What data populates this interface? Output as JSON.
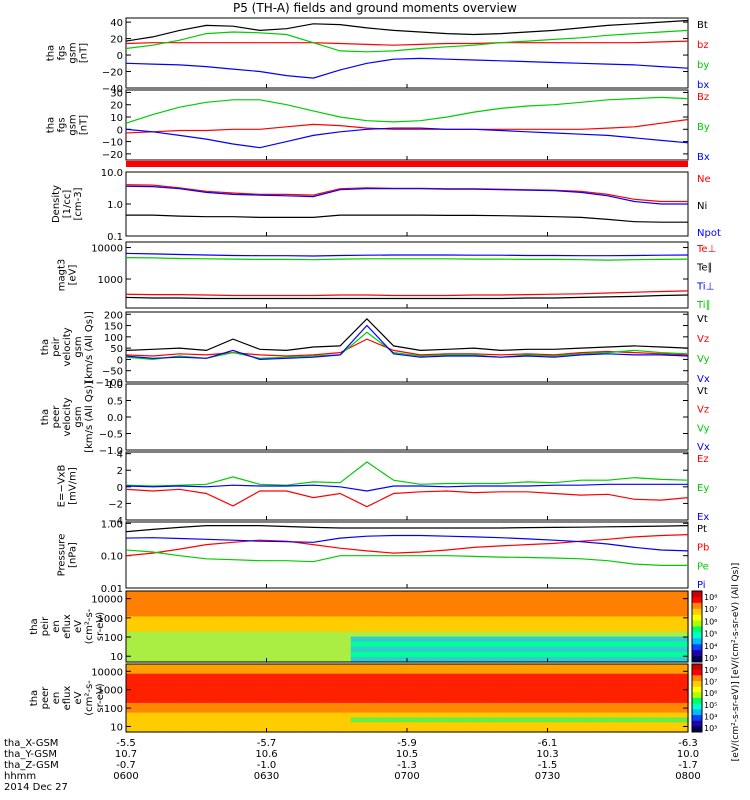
{
  "title": "P5 (TH-A) fields and ground moments overview",
  "date_label": "2014 Dec 27",
  "time_axis": {
    "row_labels": [
      "tha_X-GSM",
      "tha_Y-GSM",
      "tha_Z-GSM",
      "hhmm"
    ],
    "columns": [
      {
        "x": "-5.5",
        "y": "10.7",
        "z": "-0.7",
        "t": "0600"
      },
      {
        "x": "-5.7",
        "y": "10.6",
        "z": "-1.0",
        "t": "0630"
      },
      {
        "x": "-5.9",
        "y": "10.5",
        "z": "-1.3",
        "t": "0700"
      },
      {
        "x": "-6.1",
        "y": "10.3",
        "z": "-1.5",
        "t": "0730"
      },
      {
        "x": "-6.3",
        "y": "10.0",
        "z": "-1.7",
        "t": "0800"
      }
    ]
  },
  "colors": {
    "black": "#000000",
    "red": "#ff0000",
    "green": "#00cc00",
    "blue": "#0000ff"
  },
  "chart_data": [
    {
      "type": "line",
      "ylabel": [
        "tha",
        "fgs",
        "gsm",
        "[nT]"
      ],
      "ylim": [
        -40,
        45
      ],
      "yticks": [
        "40",
        "20",
        "0",
        "−20",
        "−40"
      ],
      "ytick_values": [
        40,
        20,
        0,
        -20,
        -40
      ],
      "series": [
        {
          "name": "Bt",
          "color": "#000000",
          "values": [
            17,
            22,
            30,
            36,
            35,
            30,
            32,
            38,
            37,
            33,
            30,
            28,
            26,
            25,
            26,
            28,
            30,
            33,
            36,
            38,
            40,
            42
          ]
        },
        {
          "name": "bz",
          "color": "#ff0000",
          "values": [
            14,
            15,
            15,
            15,
            15,
            15,
            15,
            15,
            14,
            13,
            12,
            13,
            14,
            14,
            15,
            15,
            15,
            15,
            15,
            15,
            16,
            17
          ]
        },
        {
          "name": "by",
          "color": "#00cc00",
          "values": [
            8,
            12,
            18,
            26,
            28,
            27,
            25,
            15,
            5,
            4,
            5,
            8,
            10,
            12,
            15,
            17,
            19,
            21,
            24,
            26,
            28,
            30
          ]
        },
        {
          "name": "bx",
          "color": "#0000ff",
          "values": [
            -10,
            -11,
            -12,
            -14,
            -17,
            -20,
            -25,
            -28,
            -18,
            -10,
            -5,
            -4,
            -5,
            -6,
            -7,
            -8,
            -9,
            -10,
            -11,
            -12,
            -14,
            -16
          ]
        }
      ]
    },
    {
      "type": "line",
      "ylabel": [
        "tha",
        "fgs",
        "gsm",
        "[nT]"
      ],
      "ylim": [
        -25,
        32
      ],
      "yticks": [
        "30",
        "20",
        "10",
        "0",
        "−10",
        "−20"
      ],
      "ytick_values": [
        30,
        20,
        10,
        0,
        -10,
        -20
      ],
      "series": [
        {
          "name": "Bz",
          "color": "#ff0000",
          "values": [
            -3,
            -2,
            -1,
            -1,
            0,
            0,
            2,
            4,
            3,
            1,
            0,
            0,
            0,
            0,
            0,
            0,
            0,
            0,
            1,
            2,
            5,
            8
          ]
        },
        {
          "name": "By",
          "color": "#00cc00",
          "values": [
            5,
            12,
            18,
            22,
            24,
            24,
            20,
            15,
            10,
            7,
            6,
            7,
            10,
            14,
            17,
            19,
            20,
            22,
            24,
            25,
            26,
            25
          ]
        },
        {
          "name": "Bx",
          "color": "#0000ff",
          "values": [
            0,
            -2,
            -5,
            -8,
            -12,
            -15,
            -10,
            -5,
            -2,
            0,
            1,
            1,
            0,
            0,
            -1,
            -2,
            -3,
            -4,
            -5,
            -7,
            -9,
            -11
          ]
        }
      ]
    },
    {
      "type": "line",
      "ylabel": [
        "Density",
        "[1/cc]",
        "[cm-3]"
      ],
      "log": true,
      "ylim": [
        0.1,
        10
      ],
      "yticks": [
        "10.0",
        "1.0",
        "0.1"
      ],
      "ytick_values": [
        10,
        1,
        0.1
      ],
      "series": [
        {
          "name": "Ne",
          "color": "#ff0000",
          "values": [
            4,
            3.9,
            3.2,
            2.5,
            2.2,
            2.0,
            2.0,
            1.9,
            3.0,
            3.2,
            3.1,
            3.1,
            3.0,
            3.0,
            2.9,
            2.8,
            2.7,
            2.5,
            2.0,
            1.4,
            1.2,
            1.2
          ]
        },
        {
          "name": "Ni",
          "color": "#000000",
          "values": [
            0.45,
            0.45,
            0.42,
            0.4,
            0.4,
            0.38,
            0.38,
            0.38,
            0.45,
            0.45,
            0.45,
            0.45,
            0.44,
            0.44,
            0.43,
            0.42,
            0.4,
            0.38,
            0.33,
            0.28,
            0.27,
            0.27
          ]
        },
        {
          "name": "Npot",
          "color": "#0000ff",
          "values": [
            3.6,
            3.5,
            3.0,
            2.3,
            2.0,
            1.9,
            1.8,
            1.7,
            2.8,
            3.0,
            3.0,
            3.0,
            2.9,
            2.9,
            2.8,
            2.7,
            2.6,
            2.3,
            1.8,
            1.2,
            1.0,
            1.0
          ]
        }
      ]
    },
    {
      "type": "line",
      "ylabel": [
        "magt3",
        "[eV]"
      ],
      "log": true,
      "ylim": [
        120,
        15000
      ],
      "yticks": [
        "10000",
        "1000"
      ],
      "ytick_values": [
        10000,
        1000
      ],
      "series": [
        {
          "name": "Te⊥",
          "color": "#ff0000",
          "values": [
            330,
            320,
            320,
            310,
            300,
            300,
            300,
            300,
            310,
            310,
            300,
            300,
            300,
            310,
            310,
            320,
            330,
            340,
            360,
            380,
            400,
            420
          ]
        },
        {
          "name": "Te∥",
          "color": "#000000",
          "values": [
            260,
            250,
            250,
            240,
            240,
            240,
            240,
            240,
            240,
            240,
            240,
            240,
            240,
            240,
            240,
            250,
            250,
            260,
            270,
            280,
            300,
            310
          ]
        },
        {
          "name": "Ti⊥",
          "color": "#0000ff",
          "values": [
            6500,
            6300,
            6000,
            5800,
            5600,
            5500,
            5500,
            5400,
            5600,
            5700,
            5800,
            5800,
            5800,
            5700,
            5700,
            5600,
            5600,
            5500,
            5500,
            5600,
            5700,
            5800
          ]
        },
        {
          "name": "Ti∥",
          "color": "#00cc00",
          "values": [
            4800,
            4700,
            4500,
            4400,
            4300,
            4200,
            4200,
            4100,
            4300,
            4400,
            4400,
            4400,
            4400,
            4300,
            4300,
            4200,
            4200,
            4100,
            4000,
            4100,
            4200,
            4300
          ]
        }
      ]
    },
    {
      "type": "line",
      "ylabel": [
        "tha",
        "peir",
        "velocity",
        "gsm",
        "[km/s (All Qs)]"
      ],
      "ylim": [
        -100,
        210
      ],
      "yticks": [
        "200",
        "150",
        "100",
        "50",
        "0",
        "−50",
        "−100"
      ],
      "ytick_values": [
        200,
        150,
        100,
        50,
        0,
        -50,
        -100
      ],
      "series": [
        {
          "name": "Vt",
          "color": "#000000",
          "values": [
            40,
            45,
            50,
            40,
            90,
            45,
            40,
            55,
            60,
            180,
            60,
            40,
            45,
            50,
            40,
            45,
            45,
            50,
            55,
            60,
            55,
            50
          ]
        },
        {
          "name": "Vz",
          "color": "#ff0000",
          "values": [
            20,
            15,
            25,
            20,
            30,
            20,
            15,
            20,
            30,
            90,
            40,
            20,
            25,
            25,
            20,
            25,
            20,
            30,
            35,
            30,
            25,
            20
          ]
        },
        {
          "name": "Vy",
          "color": "#00cc00",
          "values": [
            10,
            0,
            15,
            5,
            30,
            5,
            10,
            15,
            20,
            120,
            30,
            15,
            20,
            20,
            10,
            20,
            15,
            25,
            30,
            40,
            30,
            25
          ]
        },
        {
          "name": "Vx",
          "color": "#0000ff",
          "values": [
            15,
            5,
            10,
            5,
            40,
            0,
            5,
            10,
            20,
            150,
            25,
            10,
            15,
            15,
            10,
            15,
            10,
            20,
            25,
            20,
            20,
            15
          ]
        }
      ]
    },
    {
      "type": "line",
      "ylabel": [
        "tha",
        "peer",
        "velocity",
        "gsm",
        "[km/s (All Qs)]"
      ],
      "ylim": [
        -1,
        1
      ],
      "yticks": [
        "1.0",
        "0.5",
        "0.0",
        "−0.5",
        "−1.0"
      ],
      "ytick_values": [
        1,
        0.5,
        0,
        -0.5,
        -1
      ],
      "series": [
        {
          "name": "Vt",
          "color": "#000000",
          "values": []
        },
        {
          "name": "Vz",
          "color": "#ff0000",
          "values": []
        },
        {
          "name": "Vy",
          "color": "#00cc00",
          "values": []
        },
        {
          "name": "Vx",
          "color": "#0000ff",
          "values": []
        }
      ]
    },
    {
      "type": "line",
      "ylabel": [
        "E=−VxB",
        "[mV/m]"
      ],
      "ylim": [
        -4,
        4.2
      ],
      "yticks": [
        "4",
        "2",
        "0",
        "−2",
        "−4"
      ],
      "ytick_values": [
        4,
        2,
        0,
        -2,
        -4
      ],
      "series": [
        {
          "name": "Ez",
          "color": "#ff0000",
          "values": [
            -0.3,
            -0.5,
            -0.3,
            -0.8,
            -2.3,
            -0.5,
            -0.5,
            -1.3,
            -0.8,
            -2.4,
            -0.8,
            -0.6,
            -0.5,
            -0.7,
            -0.6,
            -0.6,
            -0.8,
            -1.0,
            -0.9,
            -1.5,
            -1.6,
            -1.3
          ]
        },
        {
          "name": "Ey",
          "color": "#00cc00",
          "values": [
            0.2,
            0.1,
            0.2,
            0.3,
            1.2,
            0.3,
            0.2,
            0.6,
            0.5,
            3.0,
            0.8,
            0.3,
            0.4,
            0.4,
            0.4,
            0.6,
            0.5,
            0.8,
            0.8,
            1.1,
            0.9,
            0.8
          ]
        },
        {
          "name": "Ex",
          "color": "#0000ff",
          "values": [
            0.1,
            0.0,
            0.1,
            0.0,
            0.2,
            0.1,
            0.1,
            0.2,
            0.0,
            -0.5,
            0.1,
            0.1,
            0.0,
            0.1,
            0.1,
            0.1,
            0.2,
            0.2,
            0.3,
            0.3,
            0.3,
            0.3
          ]
        }
      ]
    },
    {
      "type": "line",
      "ylabel": [
        "Pressure",
        "[nPa]"
      ],
      "log": true,
      "ylim": [
        0.01,
        1.1
      ],
      "yticks": [
        "1.00",
        "0.10",
        "0.01"
      ],
      "ytick_values": [
        1,
        0.1,
        0.01
      ],
      "series": [
        {
          "name": "Pt",
          "color": "#000000",
          "values": [
            0.55,
            0.65,
            0.75,
            0.85,
            0.85,
            0.85,
            0.8,
            0.75,
            0.72,
            0.72,
            0.72,
            0.72,
            0.72,
            0.72,
            0.72,
            0.74,
            0.75,
            0.76,
            0.78,
            0.8,
            0.82,
            0.85
          ]
        },
        {
          "name": "Pb",
          "color": "#ff0000",
          "values": [
            0.1,
            0.12,
            0.16,
            0.22,
            0.26,
            0.3,
            0.28,
            0.22,
            0.17,
            0.14,
            0.12,
            0.13,
            0.15,
            0.18,
            0.2,
            0.22,
            0.24,
            0.28,
            0.32,
            0.38,
            0.42,
            0.45
          ]
        },
        {
          "name": "Pe",
          "color": "#00cc00",
          "values": [
            0.15,
            0.13,
            0.1,
            0.08,
            0.075,
            0.07,
            0.07,
            0.065,
            0.1,
            0.1,
            0.1,
            0.1,
            0.1,
            0.095,
            0.09,
            0.088,
            0.085,
            0.08,
            0.07,
            0.055,
            0.05,
            0.05
          ]
        },
        {
          "name": "Pi",
          "color": "#0000ff",
          "values": [
            0.35,
            0.36,
            0.34,
            0.32,
            0.3,
            0.28,
            0.27,
            0.26,
            0.35,
            0.4,
            0.42,
            0.42,
            0.4,
            0.38,
            0.36,
            0.33,
            0.3,
            0.27,
            0.23,
            0.18,
            0.15,
            0.14
          ]
        }
      ]
    },
    {
      "type": "heatmap",
      "ylabel": [
        "tha",
        "peir",
        "en",
        "eflux",
        "eV",
        "(cm²-s-",
        "sr-eV)"
      ],
      "log": true,
      "ylim": [
        5,
        25000
      ],
      "yticks": [
        "10000",
        "1000",
        "100",
        "10"
      ],
      "ytick_values": [
        10000,
        1000,
        100,
        10
      ]
    },
    {
      "type": "heatmap",
      "ylabel": [
        "tha",
        "peer",
        "en",
        "eflux",
        "eV",
        "(cm²-s-",
        "sr-eV)"
      ],
      "log": true,
      "ylim": [
        5,
        25000
      ],
      "yticks": [
        "10000",
        "1000",
        "100",
        "10"
      ],
      "ytick_values": [
        10000,
        1000,
        100,
        10
      ]
    }
  ],
  "colorbar": {
    "label": "[eV/(cm²-s-sr-eV)] [eV/(cm²-s-sr-eV) (All Qs)]",
    "ticks_top": [
      "10⁸",
      "10⁷",
      "10⁶",
      "10⁵",
      "10⁴",
      "10³"
    ],
    "ticks_bottom": [
      "10⁸",
      "10⁷",
      "10⁶",
      "10⁵",
      "10⁴",
      "10³"
    ]
  }
}
